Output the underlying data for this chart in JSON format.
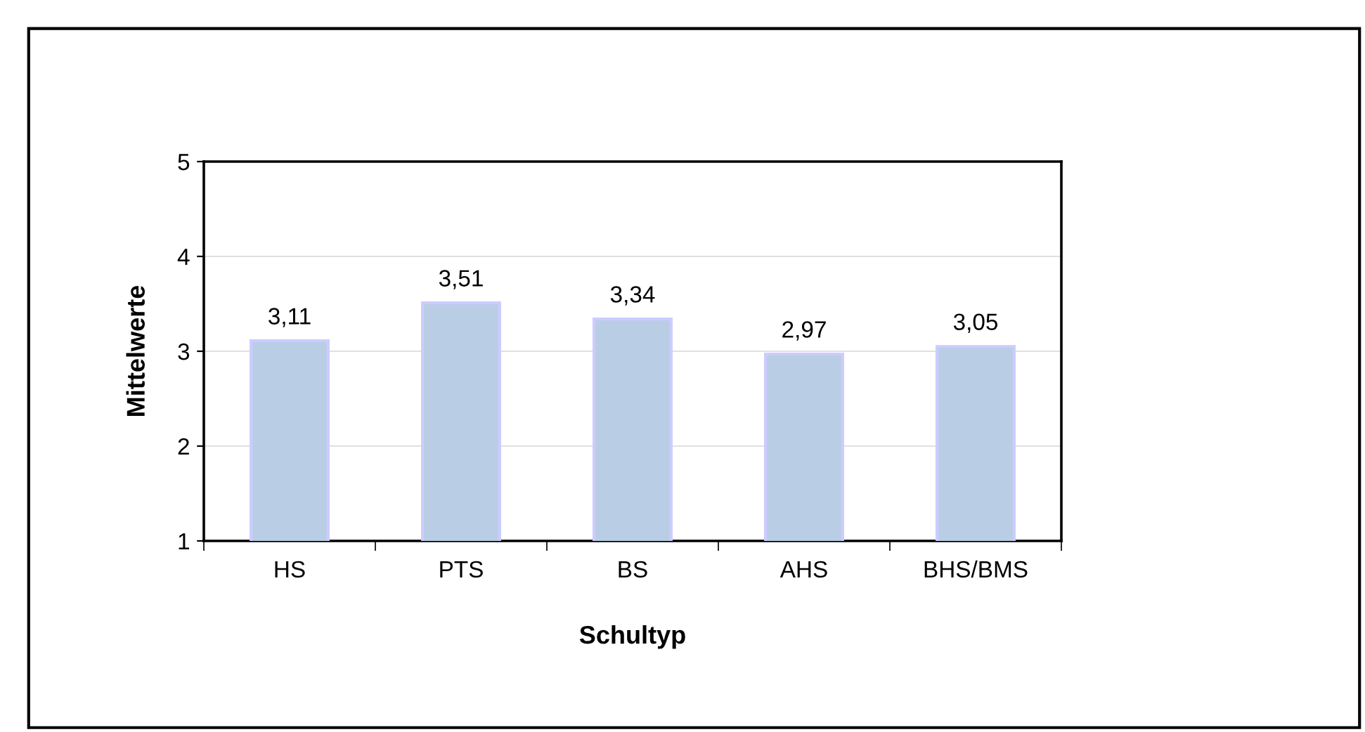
{
  "chart_data": {
    "type": "bar",
    "xlabel": "Schultyp",
    "ylabel": "Mittelwerte",
    "categories": [
      "HS",
      "PTS",
      "BS",
      "AHS",
      "BHS/BMS"
    ],
    "values": [
      3.11,
      3.51,
      3.34,
      2.97,
      3.05
    ],
    "value_labels": [
      "3,11",
      "3,51",
      "3,34",
      "2,97",
      "3,05"
    ],
    "color": "#b9cde5",
    "ylim": [
      1,
      5
    ],
    "yticks": [
      1,
      2,
      3,
      4,
      5
    ],
    "grid": "y"
  }
}
